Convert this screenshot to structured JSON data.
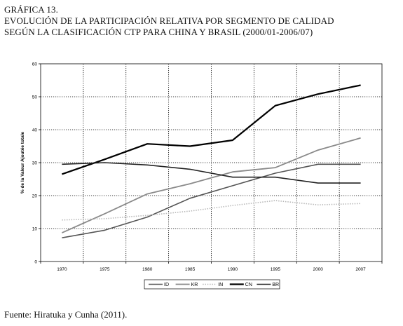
{
  "heading": {
    "label": "GRÁFICA 13.",
    "line1": "EVOLUCIÓN DE LA PARTICIPACIÓN RELATIVA POR SEGMENTO DE CALIDAD",
    "line2": "SEGÚN LA CLASIFICACIÓN CTP PARA CHINA Y BRASIL (2000/01-2006/07)"
  },
  "source": "Fuente: Hiratuka y Cunha (2011).",
  "chart_data": {
    "type": "line",
    "title": "",
    "xlabel": "",
    "ylabel": "% de la Valeur Ajoutée totale",
    "categories": [
      "1970",
      "1975",
      "1980",
      "1985",
      "1990",
      "1995",
      "2000",
      "2007"
    ],
    "ylim": [
      0,
      60
    ],
    "yticks": [
      0,
      10,
      20,
      30,
      40,
      50,
      60
    ],
    "grid": "dotted",
    "legend": "bottom",
    "series": [
      {
        "name": "ID",
        "values": [
          7.2,
          9.5,
          13.5,
          19.2,
          23.0,
          26.8,
          29.5,
          29.5
        ],
        "color": "#555555",
        "style": "solid",
        "width": 1.6
      },
      {
        "name": "KR",
        "values": [
          8.7,
          14.5,
          20.5,
          23.6,
          27.2,
          28.5,
          33.8,
          37.5
        ],
        "color": "#8a8a8a",
        "style": "solid",
        "width": 1.8
      },
      {
        "name": "IN",
        "values": [
          12.6,
          13.0,
          14.0,
          15.3,
          17.0,
          18.5,
          17.2,
          17.6
        ],
        "color": "#b8b8b8",
        "style": "dotted",
        "width": 1.6
      },
      {
        "name": "CN",
        "values": [
          26.5,
          31.0,
          35.7,
          35.0,
          36.8,
          47.3,
          50.8,
          53.5
        ],
        "color": "#000000",
        "style": "solid",
        "width": 2.2
      },
      {
        "name": "BR",
        "values": [
          29.5,
          30.0,
          29.3,
          28.0,
          25.6,
          25.6,
          23.8,
          23.8
        ],
        "color": "#222222",
        "style": "solid",
        "width": 1.6
      }
    ]
  }
}
